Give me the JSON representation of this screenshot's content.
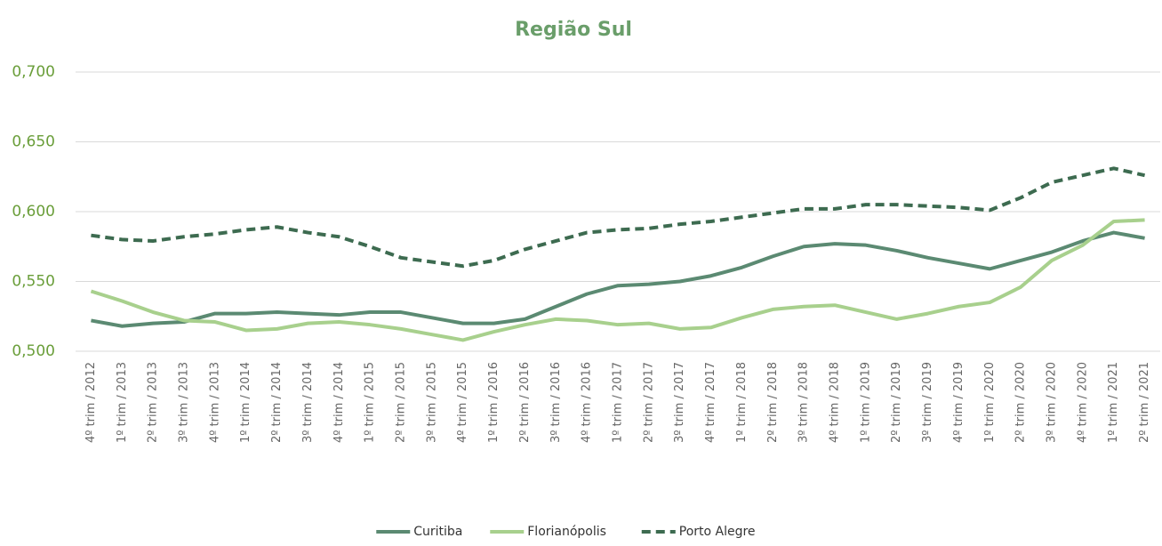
{
  "chart_data": {
    "type": "line",
    "title": "Região Sul",
    "categories": [
      "4º trim / 2012",
      "1º trim / 2013",
      "2º trim / 2013",
      "3º trim / 2013",
      "4º trim / 2013",
      "1º trim / 2014",
      "2º trim / 2014",
      "3º trim / 2014",
      "4º trim / 2014",
      "1º trim / 2015",
      "2º trim / 2015",
      "3º trim / 2015",
      "4º trim / 2015",
      "1º trim / 2016",
      "2º trim / 2016",
      "3º trim / 2016",
      "4º trim / 2016",
      "1º trim / 2017",
      "2º trim / 2017",
      "3º trim / 2017",
      "4º trim / 2017",
      "1º trim / 2018",
      "2º trim / 2018",
      "3º trim / 2018",
      "4º trim / 2018",
      "1º trim / 2019",
      "2º trim / 2019",
      "3º trim / 2019",
      "4º trim / 2019",
      "1º trim / 2020",
      "2º trim / 2020",
      "3º trim / 2020",
      "4º trim / 2020",
      "1º trim / 2021",
      "2º trim / 2021"
    ],
    "series": [
      {
        "name": "Curitiba",
        "color": "#5b8a72",
        "dashed": false,
        "values": [
          0.522,
          0.518,
          0.52,
          0.521,
          0.527,
          0.527,
          0.528,
          0.527,
          0.526,
          0.528,
          0.528,
          0.524,
          0.52,
          0.52,
          0.523,
          0.532,
          0.541,
          0.547,
          0.548,
          0.55,
          0.554,
          0.56,
          0.568,
          0.575,
          0.577,
          0.576,
          0.572,
          0.567,
          0.563,
          0.559,
          0.565,
          0.571,
          0.579,
          0.585,
          0.581
        ]
      },
      {
        "name": "Florianópolis",
        "color": "#a8d08d",
        "dashed": false,
        "values": [
          0.543,
          0.536,
          0.528,
          0.522,
          0.521,
          0.515,
          0.516,
          0.52,
          0.521,
          0.519,
          0.516,
          0.512,
          0.508,
          0.514,
          0.519,
          0.523,
          0.522,
          0.519,
          0.52,
          0.516,
          0.517,
          0.524,
          0.53,
          0.532,
          0.533,
          0.528,
          0.523,
          0.527,
          0.532,
          0.535,
          0.546,
          0.565,
          0.576,
          0.593,
          0.594
        ]
      },
      {
        "name": "Porto Alegre",
        "color": "#3d6b50",
        "dashed": true,
        "values": [
          0.583,
          0.58,
          0.579,
          0.582,
          0.584,
          0.587,
          0.589,
          0.585,
          0.582,
          0.575,
          0.567,
          0.564,
          0.561,
          0.565,
          0.573,
          0.579,
          0.585,
          0.587,
          0.588,
          0.591,
          0.593,
          0.596,
          0.599,
          0.602,
          0.602,
          0.605,
          0.605,
          0.604,
          0.603,
          0.601,
          0.61,
          0.621,
          0.626,
          0.631,
          0.626
        ]
      }
    ],
    "ylim": [
      0.5,
      0.7
    ],
    "yticks": [
      {
        "value": 0.5,
        "label": "0,500"
      },
      {
        "value": 0.55,
        "label": "0,550"
      },
      {
        "value": 0.6,
        "label": "0,600"
      },
      {
        "value": 0.65,
        "label": "0,650"
      },
      {
        "value": 0.7,
        "label": "0,700"
      }
    ],
    "grid": true,
    "legend": "bottom"
  }
}
